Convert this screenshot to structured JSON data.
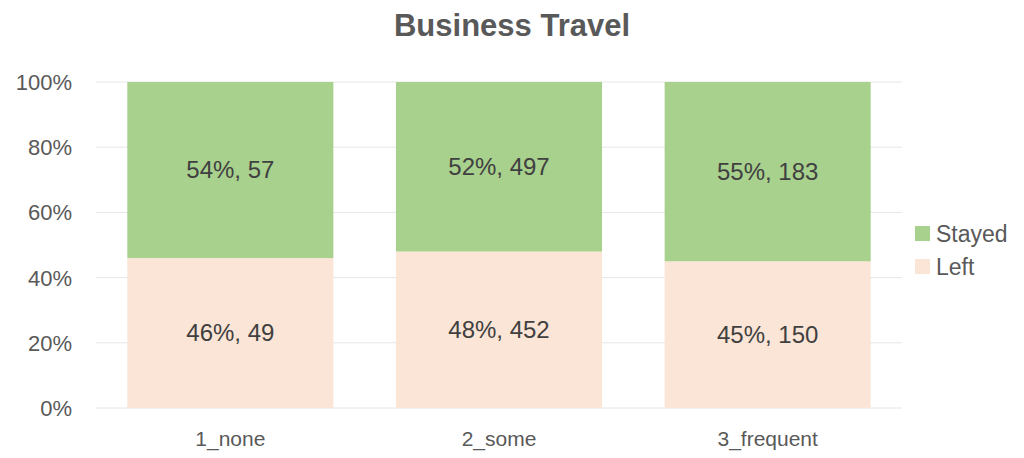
{
  "chart_data": {
    "type": "bar",
    "title": "Business Travel",
    "categories": [
      "1_none",
      "2_some",
      "3_frequent"
    ],
    "series": [
      {
        "name": "Left",
        "color": "#fbe5d6",
        "values": [
          46,
          48,
          45
        ],
        "counts": [
          49,
          452,
          150
        ],
        "value_labels": [
          "46%, 49",
          "48%, 452",
          "45%, 150"
        ]
      },
      {
        "name": "Stayed",
        "color": "#a9d18e",
        "values": [
          54,
          52,
          55
        ],
        "counts": [
          57,
          497,
          183
        ],
        "value_labels": [
          "54%, 57",
          "52%, 497",
          "55%, 183"
        ]
      }
    ],
    "ylim": [
      0,
      100
    ],
    "yticks": [
      {
        "value": 0,
        "label": "0%"
      },
      {
        "value": 20,
        "label": "20%"
      },
      {
        "value": 40,
        "label": "40%"
      },
      {
        "value": 60,
        "label": "60%"
      },
      {
        "value": 80,
        "label": "80%"
      },
      {
        "value": 100,
        "label": "100%"
      }
    ],
    "grid": true,
    "stacked": true,
    "data_labels": true,
    "legend": "right"
  }
}
